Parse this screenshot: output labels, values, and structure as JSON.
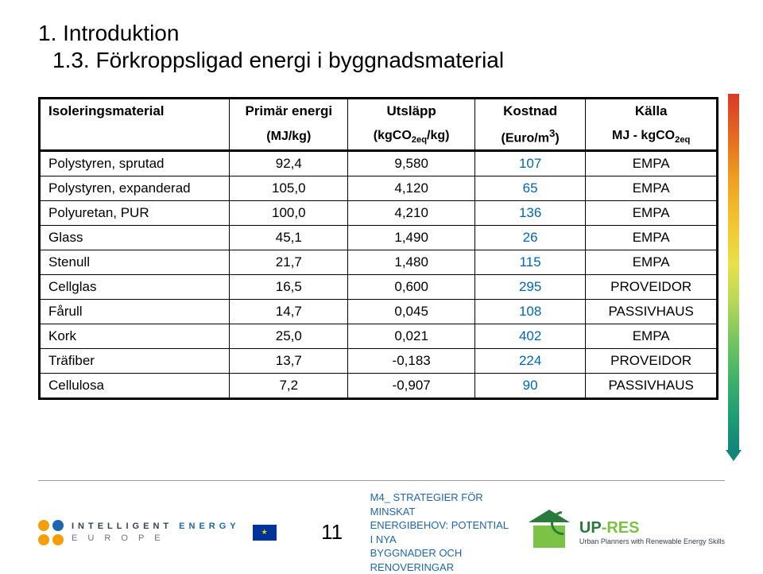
{
  "title": {
    "line1": "1. Introduktion",
    "line2": "1.3. Förkroppsligad energi i byggnadsmaterial"
  },
  "table": {
    "headers": {
      "c1": "Isoleringsmaterial",
      "c2": "Primär energi",
      "c3": "Utsläpp",
      "c4": "Kostnad",
      "c5": "Källa"
    },
    "units": {
      "c2": "(MJ/kg)",
      "c3_html": "(kgCO<sub>2eq</sub>/kg)",
      "c4_html": "(Euro/m<sup>3</sup>)",
      "c5_html": "MJ - kgCO<sub>2eq</sub>"
    },
    "rows": [
      {
        "name": "Polystyren, sprutad",
        "c2": "92,4",
        "c3": "9,580",
        "c4": "107",
        "c5": "EMPA",
        "group_end": false
      },
      {
        "name": "Polystyren, expanderad",
        "c2": "105,0",
        "c3": "4,120",
        "c4": "65",
        "c5": "EMPA",
        "group_end": true
      },
      {
        "name": "Polyuretan, PUR",
        "c2": "100,0",
        "c3": "4,210",
        "c4": "136",
        "c5": "EMPA",
        "group_end": true
      },
      {
        "name": "Glass",
        "c2": "45,1",
        "c3": "1,490",
        "c4": "26",
        "c5": "EMPA",
        "group_end": false
      },
      {
        "name": "Stenull",
        "c2": "21,7",
        "c3": "1,480",
        "c4": "115",
        "c5": "EMPA",
        "group_end": true
      },
      {
        "name": "Cellglas",
        "c2": "16,5",
        "c3": "0,600",
        "c4": "295",
        "c5": "PROVEIDOR",
        "group_end": false
      },
      {
        "name": "Fårull",
        "c2": "14,7",
        "c3": "0,045",
        "c4": "108",
        "c5": "PASSIVHAUS",
        "group_end": true
      },
      {
        "name": "Kork",
        "c2": "25,0",
        "c3": "0,021",
        "c4": "402",
        "c5": "EMPA",
        "group_end": false
      },
      {
        "name": "Träfiber",
        "c2": "13,7",
        "c3": "-0,183",
        "c4": "224",
        "c5": "PROVEIDOR",
        "group_end": true
      },
      {
        "name": "Cellulosa",
        "c2": "7,2",
        "c3": "-0,907",
        "c4": "90",
        "c5": "PASSIVHAUS",
        "group_end": false,
        "last": true
      }
    ],
    "col4_color": "#0066b3"
  },
  "footer": {
    "pagenum": "11",
    "course_l1": "M4_ STRATEGIER FÖR MINSKAT",
    "course_l2": "ENERGIBEHOV: POTENTIAL I NYA",
    "course_l3": "BYGGNADER OCH RENOVERINGAR",
    "ie_line1": "INTELLIGENT",
    "ie_line2": "E U R O P E",
    "ie_energy": "ENERGY",
    "upres_brand_a": "UP",
    "upres_brand_b": "-RES",
    "upres_tag": "Urban Planners with Renewable Energy Skills"
  }
}
